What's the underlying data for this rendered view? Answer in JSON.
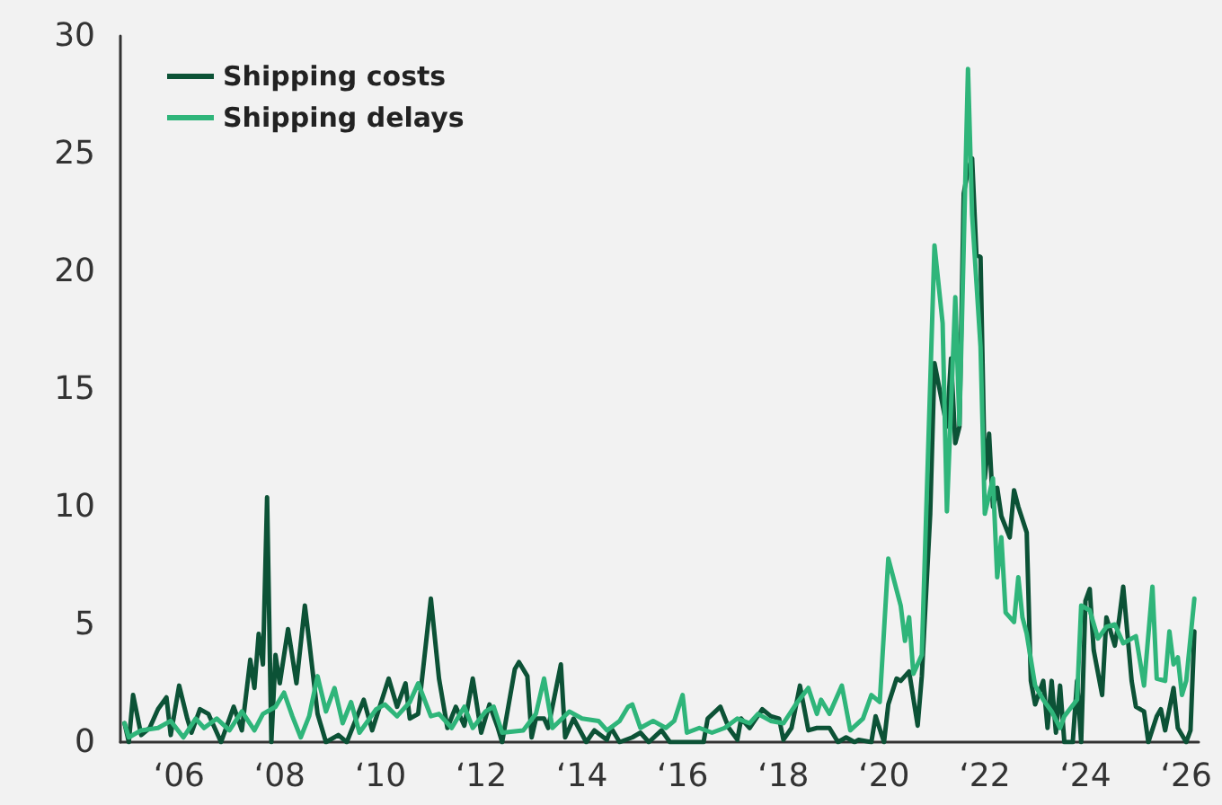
{
  "chart_data": {
    "type": "line",
    "xlim": [
      "2004-11",
      "2026-04"
    ],
    "xticks": [
      {
        "value": "2006",
        "label": "‘06"
      },
      {
        "value": "2008",
        "label": "‘08"
      },
      {
        "value": "2010",
        "label": "‘10"
      },
      {
        "value": "2012",
        "label": "‘12"
      },
      {
        "value": "2014",
        "label": "‘14"
      },
      {
        "value": "2016",
        "label": "‘16"
      },
      {
        "value": "2018",
        "label": "‘18"
      },
      {
        "value": "2020",
        "label": "‘20"
      },
      {
        "value": "2022",
        "label": "‘22"
      },
      {
        "value": "2024",
        "label": "‘24"
      },
      {
        "value": "2026",
        "label": "‘26"
      }
    ],
    "ylim": [
      0,
      30
    ],
    "yticks": [
      0,
      5,
      10,
      15,
      20,
      25,
      30
    ],
    "grid": false,
    "legend": "top left",
    "marker": "none",
    "line_style": "solid",
    "series": [
      {
        "name": "Shipping costs",
        "color": "#0c5236",
        "x": [
          "2004-12",
          "2005-01",
          "2005-02",
          "2005-04",
          "2005-06",
          "2005-08",
          "2005-10",
          "2005-11",
          "2006-01",
          "2006-03",
          "2006-04",
          "2006-06",
          "2006-08",
          "2006-11",
          "2007-02",
          "2007-04",
          "2007-06",
          "2007-07",
          "2007-08",
          "2007-09",
          "2007-10",
          "2007-11",
          "2007-12",
          "2008-01",
          "2008-03",
          "2008-05",
          "2008-07",
          "2008-08",
          "2008-10",
          "2008-12",
          "2009-03",
          "2009-05",
          "2009-09",
          "2009-11",
          "2010-03",
          "2010-05",
          "2010-07",
          "2010-08",
          "2010-10",
          "2011-01",
          "2011-03",
          "2011-05",
          "2011-07",
          "2011-09",
          "2011-11",
          "2012-01",
          "2012-03",
          "2012-05",
          "2012-06",
          "2012-09",
          "2012-10",
          "2012-12",
          "2013-01",
          "2013-02",
          "2013-04",
          "2013-05",
          "2013-08",
          "2013-09",
          "2013-11",
          "2014-02",
          "2014-04",
          "2014-07",
          "2014-08",
          "2014-10",
          "2015-01",
          "2015-03",
          "2015-05",
          "2015-08",
          "2015-10",
          "2016-06",
          "2016-07",
          "2016-10",
          "2016-12",
          "2017-02",
          "2017-03",
          "2017-05",
          "2017-08",
          "2017-10",
          "2017-12",
          "2018-01",
          "2018-03",
          "2018-05",
          "2018-07",
          "2018-09",
          "2018-12",
          "2019-02",
          "2019-04",
          "2019-06",
          "2019-07",
          "2019-10",
          "2019-11",
          "2020-01",
          "2020-02",
          "2020-04",
          "2020-05",
          "2020-07",
          "2020-09",
          "2020-10",
          "2020-12",
          "2021-01",
          "2021-04",
          "2021-05",
          "2021-06",
          "2021-07",
          "2021-08",
          "2021-09",
          "2021-10",
          "2021-11",
          "2021-12",
          "2022-01",
          "2022-02",
          "2022-03",
          "2022-04",
          "2022-05",
          "2022-07",
          "2022-08",
          "2022-09",
          "2022-11",
          "2022-12",
          "2023-01",
          "2023-03",
          "2023-04",
          "2023-05",
          "2023-06",
          "2023-07",
          "2023-08",
          "2023-10",
          "2023-11",
          "2023-12",
          "2024-01",
          "2024-02",
          "2024-03",
          "2024-05",
          "2024-06",
          "2024-08",
          "2024-09",
          "2024-10",
          "2024-12",
          "2025-01",
          "2025-03",
          "2025-04",
          "2025-06",
          "2025-07",
          "2025-08",
          "2025-10",
          "2025-11",
          "2026-01",
          "2026-02",
          "2026-03"
        ],
        "values": [
          0.8,
          0,
          2.0,
          0.3,
          0.6,
          1.4,
          1.9,
          0.3,
          2.4,
          1.0,
          0.4,
          1.4,
          1.2,
          0,
          1.5,
          0.5,
          3.5,
          2.3,
          4.6,
          3.3,
          10.4,
          0,
          3.7,
          2.5,
          4.8,
          2.5,
          5.8,
          4.3,
          1.2,
          0,
          0.3,
          0,
          1.8,
          0.5,
          2.7,
          1.5,
          2.5,
          1.0,
          1.2,
          6.1,
          2.7,
          0.6,
          1.5,
          0.7,
          2.7,
          0.4,
          1.6,
          0.6,
          0,
          3.1,
          3.4,
          2.8,
          0.2,
          1.0,
          1.0,
          0.6,
          3.3,
          0.2,
          1.0,
          0,
          0.5,
          0.1,
          0.6,
          0,
          0.2,
          0.4,
          0,
          0.5,
          0,
          0,
          1.0,
          1.5,
          0.6,
          0.1,
          1.0,
          0.6,
          1.4,
          1.1,
          1.0,
          0.1,
          0.6,
          2.4,
          0.5,
          0.6,
          0.6,
          0,
          0.2,
          0,
          0.1,
          0,
          1.1,
          0,
          1.6,
          2.7,
          2.6,
          3.0,
          0.7,
          2.8,
          9.7,
          16.1,
          13.4,
          16.3,
          12.7,
          13.4,
          23.3,
          24.3,
          24.8,
          20.7,
          20.6,
          11.2,
          13.1,
          10.0,
          10.8,
          9.6,
          8.7,
          10.7,
          10.0,
          8.9,
          2.6,
          1.6,
          2.6,
          0.6,
          2.6,
          0.4,
          2.4,
          0,
          0,
          2.6,
          0,
          6.0,
          6.5,
          3.9,
          2.0,
          5.3,
          4.1,
          5.2,
          6.6,
          2.6,
          1.5,
          1.3,
          0,
          1.1,
          1.4,
          0.5,
          2.3,
          0.6,
          0,
          0.5,
          4.7
        ]
      },
      {
        "name": "Shipping delays",
        "color": "#2fb57a",
        "x": [
          "2004-12",
          "2005-01",
          "2005-04",
          "2005-08",
          "2005-11",
          "2006-02",
          "2006-05",
          "2006-07",
          "2006-10",
          "2007-01",
          "2007-04",
          "2007-07",
          "2007-09",
          "2007-12",
          "2008-02",
          "2008-04",
          "2008-06",
          "2008-08",
          "2008-10",
          "2008-12",
          "2009-02",
          "2009-04",
          "2009-06",
          "2009-08",
          "2009-12",
          "2010-02",
          "2010-05",
          "2010-08",
          "2010-10",
          "2011-01",
          "2011-03",
          "2011-06",
          "2011-09",
          "2011-11",
          "2012-02",
          "2012-04",
          "2012-06",
          "2012-11",
          "2013-02",
          "2013-04",
          "2013-06",
          "2013-10",
          "2014-01",
          "2014-05",
          "2014-07",
          "2014-10",
          "2014-12",
          "2015-01",
          "2015-03",
          "2015-06",
          "2015-09",
          "2015-11",
          "2016-01",
          "2016-02",
          "2016-05",
          "2016-08",
          "2016-11",
          "2017-02",
          "2017-05",
          "2017-07",
          "2017-10",
          "2018-01",
          "2018-04",
          "2018-07",
          "2018-09",
          "2018-10",
          "2018-12",
          "2019-03",
          "2019-05",
          "2019-08",
          "2019-10",
          "2019-12",
          "2020-02",
          "2020-05",
          "2020-06",
          "2020-07",
          "2020-08",
          "2020-10",
          "2021-01",
          "2021-03",
          "2021-04",
          "2021-06",
          "2021-07",
          "2021-09",
          "2021-10",
          "2021-12",
          "2022-01",
          "2022-03",
          "2022-04",
          "2022-05",
          "2022-06",
          "2022-08",
          "2022-09",
          "2022-10",
          "2022-11",
          "2023-01",
          "2023-03",
          "2023-05",
          "2023-07",
          "2023-08",
          "2023-11",
          "2023-12",
          "2024-02",
          "2024-04",
          "2024-06",
          "2024-08",
          "2024-10",
          "2025-01",
          "2025-03",
          "2025-05",
          "2025-06",
          "2025-08",
          "2025-09",
          "2025-10",
          "2025-11",
          "2025-12",
          "2026-01",
          "2026-03"
        ],
        "values": [
          0.8,
          0.2,
          0.5,
          0.6,
          0.9,
          0.2,
          1.0,
          0.6,
          1.0,
          0.5,
          1.3,
          0.5,
          1.2,
          1.5,
          2.1,
          1.1,
          0.2,
          1.1,
          2.8,
          1.3,
          2.3,
          0.8,
          1.7,
          0.4,
          1.4,
          1.6,
          1.1,
          1.7,
          2.5,
          1.1,
          1.2,
          0.6,
          1.5,
          0.6,
          1.3,
          1.5,
          0.4,
          0.5,
          1.2,
          2.7,
          0.6,
          1.3,
          1.0,
          0.9,
          0.5,
          0.9,
          1.5,
          1.6,
          0.6,
          0.9,
          0.6,
          0.9,
          2.0,
          0.4,
          0.6,
          0.4,
          0.6,
          1.0,
          0.8,
          1.2,
          0.9,
          0.8,
          1.6,
          2.3,
          1.2,
          1.8,
          1.2,
          2.4,
          0.5,
          1.0,
          2.0,
          1.7,
          7.8,
          5.8,
          4.3,
          5.3,
          2.9,
          3.7,
          21.1,
          17.8,
          9.8,
          18.9,
          13.5,
          28.6,
          22.4,
          16.8,
          9.7,
          11.2,
          7.0,
          8.7,
          5.5,
          5.1,
          7.0,
          5.3,
          4.6,
          2.4,
          1.8,
          1.3,
          0.6,
          1.1,
          1.8,
          5.8,
          5.6,
          4.4,
          4.9,
          5.0,
          4.2,
          4.5,
          2.4,
          6.6,
          2.7,
          2.6,
          4.7,
          3.3,
          3.6,
          2.0,
          2.6,
          6.1
        ]
      }
    ]
  }
}
